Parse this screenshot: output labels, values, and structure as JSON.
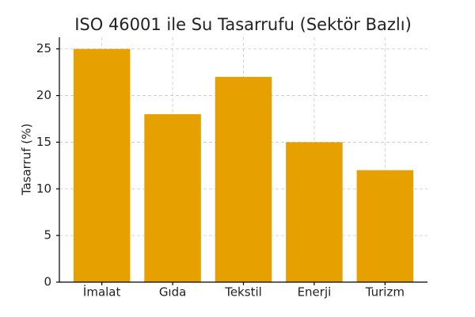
{
  "chart_data": {
    "type": "bar",
    "title": "ISO 46001 ile Su Tasarrufu (Sektör Bazlı)",
    "y_label": "Tasarruf (%)",
    "categories": [
      "İmalat",
      "Gıda",
      "Tekstil",
      "Enerji",
      "Turizm"
    ],
    "values": [
      25,
      18,
      22,
      15,
      12
    ],
    "color": "#e6a000",
    "ylim": [
      0,
      26.25
    ],
    "yticks": [
      0,
      5,
      10,
      15,
      20,
      25
    ],
    "grid": true
  }
}
